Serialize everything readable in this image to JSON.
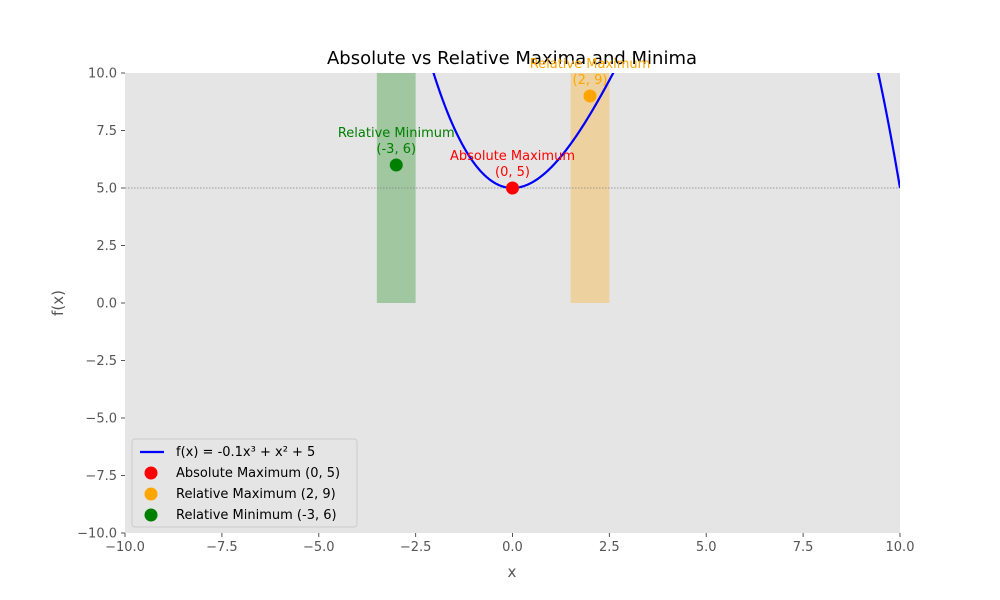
{
  "chart_data": {
    "type": "line",
    "title": "Absolute vs Relative Maxima and Minima",
    "xlabel": "x",
    "ylabel": "f(x)",
    "xlim": [
      -10,
      10
    ],
    "ylim": [
      -10,
      10
    ],
    "x_ticks": [
      -10,
      -7.5,
      -5,
      -2.5,
      0,
      2.5,
      5,
      7.5,
      10
    ],
    "x_tick_labels": [
      "−10.0",
      "−7.5",
      "−5.0",
      "−2.5",
      "0.0",
      "2.5",
      "5.0",
      "7.5",
      "10.0"
    ],
    "y_ticks": [
      -10,
      -7.5,
      -5,
      -2.5,
      0,
      2.5,
      5,
      7.5,
      10
    ],
    "y_tick_labels": [
      "−10.0",
      "−7.5",
      "−5.0",
      "−2.5",
      "0.0",
      "2.5",
      "5.0",
      "7.5",
      "10.0"
    ],
    "grid": false,
    "background": "#e5e5e5",
    "line_series": {
      "name": "f(x) = -0.1x³ + x² + 5",
      "color": "#0000ff"
    },
    "points": [
      {
        "name": "Absolute Maximum (0, 5)",
        "x": 0,
        "y": 5,
        "color": "#ff0000",
        "label_line1": "Absolute Maximum",
        "label_line2": "(0, 5)"
      },
      {
        "name": "Relative Maximum (2, 9)",
        "x": 2,
        "y": 9,
        "color": "#ffa500",
        "label_line1": "Relative Maximum",
        "label_line2": "(2, 9)"
      },
      {
        "name": "Relative Minimum (-3, 6)",
        "x": -3,
        "y": 6,
        "color": "#008000",
        "label_line1": "Relative Minimum",
        "label_line2": "(-3, 6)"
      }
    ],
    "shaded_regions": [
      {
        "x_from": -3.5,
        "x_to": -2.5,
        "y_from": 0,
        "y_to": 10,
        "color": "#008000",
        "opacity": 0.3
      },
      {
        "x_from": 1.5,
        "x_to": 2.5,
        "y_from": 0,
        "y_to": 10,
        "color": "#ffa500",
        "opacity": 0.3
      }
    ],
    "reference_line": {
      "y": 5,
      "color": "#808080",
      "style": "dotted"
    },
    "legend_position": "lower-left"
  }
}
